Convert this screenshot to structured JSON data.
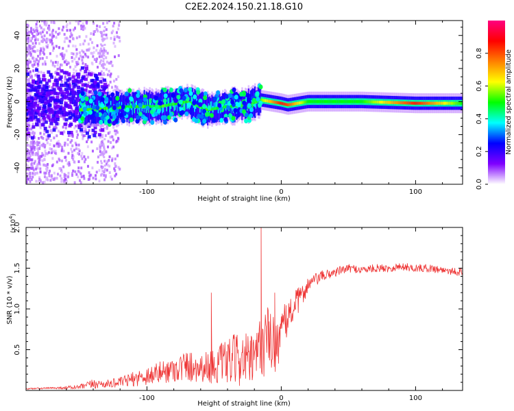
{
  "figure_title": "C2E2.2024.150.21.18.G10",
  "chart_data": [
    {
      "type": "heatmap",
      "title": "C2E2.2024.150.21.18.G10",
      "xlabel": "Height of straight line (km)",
      "ylabel": "Frequency (Hz)",
      "xlim": [
        -190,
        135
      ],
      "ylim": [
        -50,
        49
      ],
      "xticks": [
        -100,
        0,
        100
      ],
      "yticks": [
        -40,
        -20,
        0,
        20,
        40
      ],
      "xtick_labels": [
        "-100",
        "0",
        "100"
      ],
      "ytick_labels": [
        "-40",
        "-20",
        "0",
        "20",
        "40"
      ],
      "colorbar": {
        "label": "Normalized spectral amplitude",
        "range": [
          0.0,
          1.0
        ],
        "ticks": [
          0.0,
          0.2,
          0.4,
          0.6,
          0.8
        ],
        "tick_labels": [
          "0.0",
          "0.2",
          "0.4",
          "0.6",
          "0.8"
        ],
        "colors": [
          "#ffffff",
          "#7f00ff",
          "#0000ff",
          "#00ffff",
          "#00ff00",
          "#ffff00",
          "#ff8000",
          "#ff0000",
          "#ff0080"
        ]
      },
      "ridge": {
        "description_points_x": [
          -145,
          -130,
          -110,
          -90,
          -70,
          -55,
          -40,
          -25,
          -15,
          0,
          5,
          20,
          60,
          100,
          135
        ],
        "center_freq": [
          -5,
          -4,
          -3,
          -3,
          0,
          -5,
          -3,
          -2,
          1,
          -1,
          -2,
          0,
          0,
          -1,
          -1
        ],
        "amplitude": [
          0.35,
          0.35,
          0.4,
          0.4,
          0.45,
          0.4,
          0.45,
          0.45,
          0.55,
          0.85,
          0.8,
          0.5,
          0.5,
          0.85,
          0.5
        ]
      }
    },
    {
      "type": "line",
      "xlabel": "Height of straight line (km)",
      "ylabel": "SNR (10 * v/v)",
      "scale_label": "(x10",
      "scale_exponent": "4",
      "scale_suffix": ")",
      "xlim": [
        -190,
        135
      ],
      "ylim": [
        0,
        2.0
      ],
      "xticks": [
        -100,
        0,
        100
      ],
      "yticks": [
        0.5,
        1.0,
        1.5,
        2.0
      ],
      "xtick_labels": [
        "-100",
        "0",
        "100"
      ],
      "ytick_labels": [
        "0.5",
        "1.0",
        "1.5",
        "2.0"
      ],
      "color": "#ee3333",
      "series": [
        {
          "name": "SNR",
          "x": [
            -190,
            -170,
            -150,
            -140,
            -130,
            -120,
            -110,
            -100,
            -90,
            -80,
            -70,
            -60,
            -50,
            -40,
            -30,
            -20,
            -15,
            -10,
            -5,
            0,
            5,
            10,
            15,
            20,
            30,
            40,
            50,
            60,
            70,
            80,
            90,
            100,
            110,
            120,
            135
          ],
          "y": [
            0.02,
            0.03,
            0.04,
            0.08,
            0.08,
            0.1,
            0.14,
            0.18,
            0.22,
            0.26,
            0.3,
            0.28,
            0.3,
            0.35,
            0.4,
            0.35,
            0.55,
            0.65,
            0.55,
            0.7,
            0.9,
            1.05,
            1.15,
            1.3,
            1.4,
            1.45,
            1.5,
            1.48,
            1.5,
            1.5,
            1.52,
            1.5,
            1.5,
            1.48,
            1.45
          ],
          "noise_amplitude": [
            0.01,
            0.01,
            0.03,
            0.06,
            0.05,
            0.06,
            0.09,
            0.12,
            0.14,
            0.16,
            0.2,
            0.18,
            0.22,
            0.28,
            0.35,
            0.3,
            0.45,
            0.4,
            0.35,
            0.3,
            0.22,
            0.18,
            0.14,
            0.1,
            0.07,
            0.06,
            0.05,
            0.05,
            0.05,
            0.05,
            0.05,
            0.05,
            0.05,
            0.05,
            0.05
          ],
          "spikes": [
            {
              "x": -52,
              "y": 1.2
            },
            {
              "x": -15,
              "y": 2.05
            },
            {
              "x": -5,
              "y": 1.2
            }
          ]
        }
      ]
    }
  ]
}
